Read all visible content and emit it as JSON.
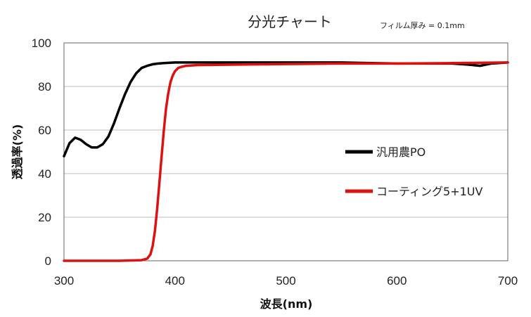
{
  "chart_data": {
    "type": "line",
    "title": "分光チャート",
    "annotation": "フィルム厚み = 0.1mm",
    "xlabel": "波長(nm)",
    "ylabel": "透過率(%)",
    "xlim": [
      300,
      700
    ],
    "ylim": [
      0,
      100
    ],
    "xticks": [
      300,
      400,
      500,
      600,
      700
    ],
    "yticks": [
      0,
      20,
      40,
      60,
      80,
      100
    ],
    "grid": "horizontal",
    "legend_position": "right",
    "series": [
      {
        "name": "汎用農PO",
        "color": "#000000",
        "x": [
          300,
          305,
          310,
          315,
          320,
          325,
          330,
          335,
          340,
          345,
          350,
          355,
          360,
          365,
          370,
          375,
          380,
          385,
          390,
          400,
          410,
          420,
          450,
          500,
          550,
          600,
          650,
          665,
          675,
          685,
          700
        ],
        "y": [
          48,
          54,
          56.5,
          55.5,
          53.5,
          52,
          52,
          53.5,
          57,
          63,
          70,
          76.5,
          82,
          86,
          88.5,
          89.5,
          90.2,
          90.5,
          90.7,
          91,
          91,
          91,
          91,
          91,
          91,
          90.5,
          90.5,
          90,
          89.5,
          90.5,
          91
        ]
      },
      {
        "name": "コーティング5+1UV",
        "color": "#dd1111",
        "x": [
          300,
          350,
          370,
          375,
          378,
          380,
          382,
          384,
          386,
          388,
          390,
          392,
          394,
          396,
          398,
          400,
          403,
          406,
          410,
          420,
          450,
          500,
          550,
          600,
          650,
          700
        ],
        "y": [
          0,
          0,
          0.3,
          1,
          3,
          7,
          14,
          24,
          36,
          48,
          60,
          70,
          77,
          82,
          85,
          87,
          88.5,
          89,
          89.5,
          89.8,
          90,
          90.3,
          90.5,
          90.5,
          90.7,
          91
        ]
      }
    ]
  }
}
